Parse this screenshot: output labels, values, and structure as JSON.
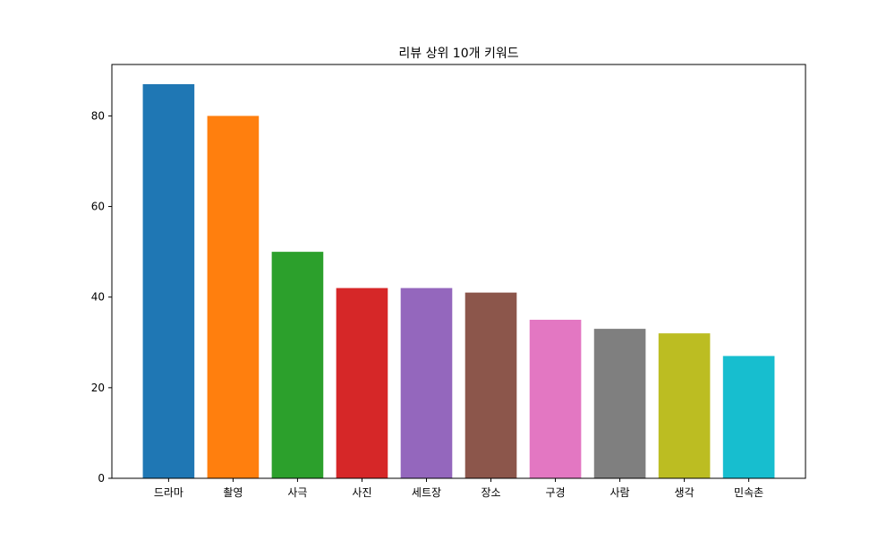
{
  "chart_data": {
    "type": "bar",
    "title": "리뷰 상위 10개 키워드",
    "xlabel": "",
    "ylabel": "",
    "categories": [
      "드라마",
      "촬영",
      "사극",
      "사진",
      "세트장",
      "장소",
      "구경",
      "사람",
      "생각",
      "민속촌"
    ],
    "values": [
      87,
      80,
      50,
      42,
      42,
      41,
      35,
      33,
      32,
      27
    ],
    "ylim": [
      0,
      91.35
    ],
    "yticks": [
      0,
      20,
      40,
      60,
      80
    ],
    "grid": false,
    "colors": [
      "#1f77b4",
      "#ff7f0e",
      "#2ca02c",
      "#d62728",
      "#9467bd",
      "#8c564b",
      "#e377c2",
      "#7f7f7f",
      "#bcbd22",
      "#17becf"
    ]
  }
}
